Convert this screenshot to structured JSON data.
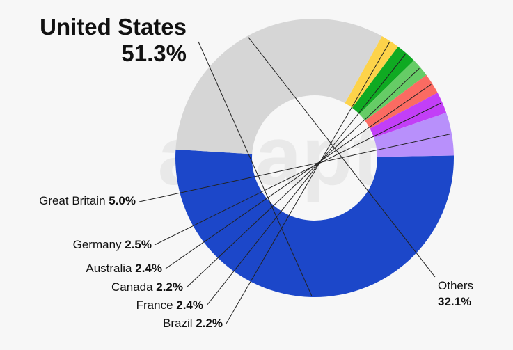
{
  "chart_data": {
    "type": "pie",
    "donut": true,
    "slices": [
      {
        "label": "United States",
        "value": 51.3,
        "display": "51.3%",
        "color": "#1c47c9"
      },
      {
        "label": "Others",
        "value": 32.1,
        "display": "32.1%",
        "color": "#d6d6d6"
      },
      {
        "label": "Brazil",
        "value": 2.2,
        "display": "2.2%",
        "color": "#fdd34a"
      },
      {
        "label": "France",
        "value": 2.4,
        "display": "2.4%",
        "color": "#0faa22"
      },
      {
        "label": "Canada",
        "value": 2.2,
        "display": "2.2%",
        "color": "#66cc66"
      },
      {
        "label": "Australia",
        "value": 2.4,
        "display": "2.4%",
        "color": "#fb6b62"
      },
      {
        "label": "Germany",
        "value": 2.5,
        "display": "2.5%",
        "color": "#c23ff7"
      },
      {
        "label": "Great Britain",
        "value": 5.0,
        "display": "5.0%",
        "color": "#b890fb"
      }
    ]
  },
  "watermark": "adapty"
}
